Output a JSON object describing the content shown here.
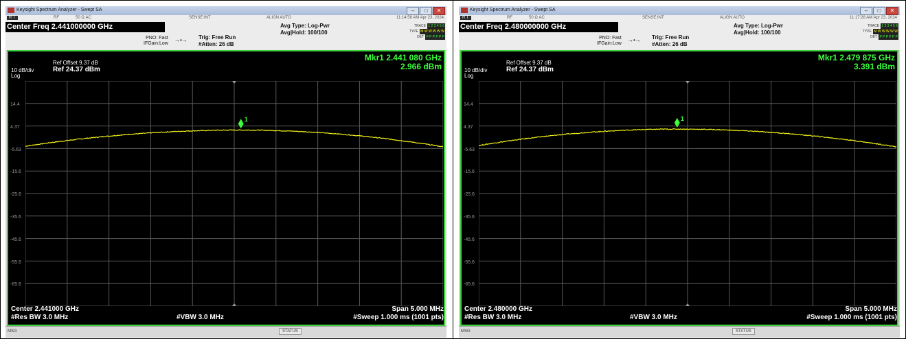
{
  "colors": {
    "trace": "#f2f215",
    "marker": "#3cff3c",
    "grid": "#5a5a5a",
    "border": "#3ccf3c"
  },
  "panels": [
    {
      "window_title": "Keysight Spectrum Analyzer - Swept SA",
      "status": {
        "mode": "R T",
        "rf": "RF",
        "impedance": "50 Ω  AC",
        "sense": "SENSE:INT",
        "align": "ALIGN AUTO",
        "datetime": "11:14:58 AM Apr 23, 2024"
      },
      "center_freq_title": "Center Freq 2.441000000 GHz",
      "pno": "PNO: Fast",
      "ifgain": "IFGain:Low",
      "trig": "Trig: Free Run",
      "atten": "#Atten: 26 dB",
      "avg_type": "Avg Type: Log-Pwr",
      "avg_hold": "Avg|Hold: 100/100",
      "trace_label": "TRACE",
      "trace_values": "1 2 3 4 5 6",
      "type_label": "TYPE",
      "type_values": "M W W W W W",
      "det_label": "DET",
      "det_values": "P P P P P P",
      "scale": "10 dB/div",
      "log": "Log",
      "ref_offset": "Ref Offset 9.37 dB",
      "ref_level": "Ref 24.37 dBm",
      "marker_freq": "Mkr1 2.441 080 GHz",
      "marker_amp": "2.966 dBm",
      "marker_label": "1",
      "y_ticks": [
        "14.4",
        "4.37",
        "-5.63",
        "-15.6",
        "-25.6",
        "-35.6",
        "-45.6",
        "-55.6",
        "-65.6"
      ],
      "center_bottom": "Center 2.441000 GHz",
      "span": "Span 5.000 MHz",
      "rbw": "#Res BW 3.0 MHz",
      "vbw": "#VBW 3.0 MHz",
      "sweep": "#Sweep  1.000 ms (1001 pts)",
      "msg": "MSG",
      "status_label": "STATUS",
      "trace_db_start": -4.6,
      "trace_db_peak": 2.97,
      "trace_db_end": -4.9,
      "marker_x_fraction": 0.516
    },
    {
      "window_title": "Keysight Spectrum Analyzer - Swept SA",
      "status": {
        "mode": "R T",
        "rf": "RF",
        "impedance": "50 Ω  AC",
        "sense": "SENSE:INT",
        "align": "ALIGN AUTO",
        "datetime": "11:17:28 AM Apr 23, 2024"
      },
      "center_freq_title": "Center Freq 2.480000000 GHz",
      "pno": "PNO: Fast",
      "ifgain": "IFGain:Low",
      "trig": "Trig: Free Run",
      "atten": "#Atten: 26 dB",
      "avg_type": "Avg Type: Log-Pwr",
      "avg_hold": "Avg|Hold: 100/100",
      "trace_label": "TRACE",
      "trace_values": "1 2 3 4 5 6",
      "type_label": "TYPE",
      "type_values": "M W W W W W",
      "det_label": "DET",
      "det_values": "P P P P P P",
      "scale": "10 dB/div",
      "log": "Log",
      "ref_offset": "Ref Offset 9.37 dB",
      "ref_level": "Ref 24.37 dBm",
      "marker_freq": "Mkr1 2.479 875 GHz",
      "marker_amp": "3.391 dBm",
      "marker_label": "1",
      "y_ticks": [
        "14.4",
        "4.37",
        "-5.63",
        "-15.6",
        "-25.6",
        "-35.6",
        "-45.6",
        "-55.6",
        "-65.6"
      ],
      "center_bottom": "Center 2.480000 GHz",
      "span": "Span 5.000 MHz",
      "rbw": "#Res BW 3.0 MHz",
      "vbw": "#VBW 3.0 MHz",
      "sweep": "#Sweep  1.000 ms (1001 pts)",
      "msg": "MSG",
      "status_label": "STATUS",
      "trace_db_start": -4.3,
      "trace_db_peak": 3.39,
      "trace_db_end": -4.9,
      "marker_x_fraction": 0.475
    }
  ]
}
